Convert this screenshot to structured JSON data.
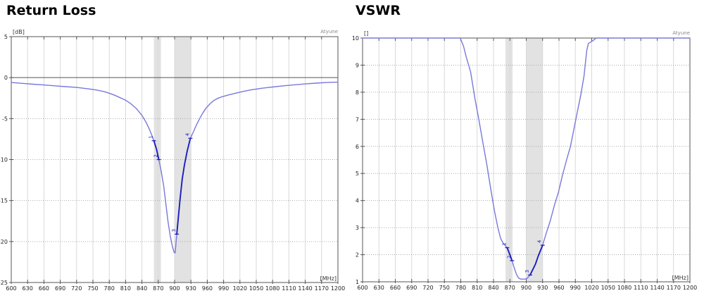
{
  "app": {
    "watermark": "Atyune"
  },
  "chart_data": [
    {
      "type": "line",
      "title": "Return Loss",
      "xlabel": "[MHz]",
      "ylabel": "[dB]",
      "watermark": "Atyune",
      "xlim": [
        600,
        1200
      ],
      "xtick_step": 30,
      "ylim": [
        -25,
        5
      ],
      "yticks": [
        5,
        0,
        -5,
        -10,
        -15,
        -20,
        -25
      ],
      "solid_line_at": 0,
      "grid": true,
      "legend": "none",
      "highlight_bands": [
        [
          862,
          875
        ],
        [
          900,
          930
        ]
      ],
      "line_color": "#7878dc",
      "bold_color": "#1e1ec0",
      "band_color": "#e2e2e2",
      "bold_ranges": [
        [
          862,
          871
        ],
        [
          904,
          929
        ]
      ],
      "markers": [
        {
          "label": "1",
          "x": 862,
          "y": -7.7
        },
        {
          "label": "2",
          "x": 871,
          "y": -10.0
        },
        {
          "label": "3",
          "x": 904,
          "y": -19.1
        },
        {
          "label": "4",
          "x": 929,
          "y": -7.4
        }
      ],
      "series": [
        {
          "name": "Return Loss",
          "points": [
            [
              600,
              -0.6
            ],
            [
              620,
              -0.7
            ],
            [
              640,
              -0.8
            ],
            [
              660,
              -0.9
            ],
            [
              680,
              -1.0
            ],
            [
              700,
              -1.1
            ],
            [
              720,
              -1.2
            ],
            [
              740,
              -1.35
            ],
            [
              755,
              -1.5
            ],
            [
              770,
              -1.7
            ],
            [
              780,
              -1.9
            ],
            [
              790,
              -2.15
            ],
            [
              800,
              -2.45
            ],
            [
              810,
              -2.75
            ],
            [
              820,
              -3.2
            ],
            [
              830,
              -3.8
            ],
            [
              840,
              -4.6
            ],
            [
              848,
              -5.5
            ],
            [
              855,
              -6.5
            ],
            [
              862,
              -7.7
            ],
            [
              867,
              -8.8
            ],
            [
              871,
              -10.0
            ],
            [
              875,
              -11.3
            ],
            [
              880,
              -13.2
            ],
            [
              884,
              -15.4
            ],
            [
              888,
              -17.6
            ],
            [
              892,
              -19.3
            ],
            [
              896,
              -20.6
            ],
            [
              899,
              -21.3
            ],
            [
              901,
              -21.4
            ],
            [
              903,
              -19.9
            ],
            [
              904,
              -19.1
            ],
            [
              907,
              -17.0
            ],
            [
              910,
              -14.9
            ],
            [
              914,
              -12.4
            ],
            [
              918,
              -10.7
            ],
            [
              923,
              -9.0
            ],
            [
              929,
              -7.4
            ],
            [
              934,
              -6.7
            ],
            [
              940,
              -5.8
            ],
            [
              946,
              -5.0
            ],
            [
              952,
              -4.3
            ],
            [
              958,
              -3.7
            ],
            [
              965,
              -3.2
            ],
            [
              972,
              -2.8
            ],
            [
              980,
              -2.5
            ],
            [
              989,
              -2.3
            ],
            [
              1000,
              -2.1
            ],
            [
              1012,
              -1.9
            ],
            [
              1025,
              -1.7
            ],
            [
              1040,
              -1.5
            ],
            [
              1060,
              -1.3
            ],
            [
              1080,
              -1.15
            ],
            [
              1100,
              -1.0
            ],
            [
              1120,
              -0.88
            ],
            [
              1140,
              -0.77
            ],
            [
              1160,
              -0.67
            ],
            [
              1180,
              -0.6
            ],
            [
              1200,
              -0.55
            ]
          ]
        }
      ]
    },
    {
      "type": "line",
      "title": "VSWR",
      "xlabel": "[MHz]",
      "ylabel": "[]",
      "watermark": "Atyune",
      "xlim": [
        600,
        1200
      ],
      "xtick_step": 30,
      "ylim": [
        1,
        10
      ],
      "yticks": [
        10,
        9,
        8,
        7,
        6,
        5,
        4,
        3,
        2,
        1
      ],
      "solid_line_at": null,
      "grid": true,
      "legend": "none",
      "highlight_bands": [
        [
          862,
          875
        ],
        [
          900,
          930
        ]
      ],
      "line_color": "#7878dc",
      "bold_color": "#1e1ec0",
      "band_color": "#e2e2e2",
      "bold_ranges": [
        [
          865,
          874
        ],
        [
          907,
          930
        ]
      ],
      "markers": [
        {
          "label": "1",
          "x": 865,
          "y": 2.26
        },
        {
          "label": "2",
          "x": 874,
          "y": 1.78
        },
        {
          "label": "3",
          "x": 907,
          "y": 1.25
        },
        {
          "label": "4",
          "x": 930,
          "y": 2.35
        }
      ],
      "series": [
        {
          "name": "VSWR",
          "points": [
            [
              600,
              10
            ],
            [
              779,
              10
            ],
            [
              785,
              9.7
            ],
            [
              790,
              9.3
            ],
            [
              798,
              8.75
            ],
            [
              806,
              7.75
            ],
            [
              813,
              7.0
            ],
            [
              820,
              6.2
            ],
            [
              828,
              5.3
            ],
            [
              836,
              4.3
            ],
            [
              842,
              3.6
            ],
            [
              848,
              3.0
            ],
            [
              853,
              2.6
            ],
            [
              858,
              2.42
            ],
            [
              865,
              2.26
            ],
            [
              870,
              2.0
            ],
            [
              874,
              1.78
            ],
            [
              878,
              1.52
            ],
            [
              882,
              1.28
            ],
            [
              886,
              1.14
            ],
            [
              890,
              1.1
            ],
            [
              898,
              1.1
            ],
            [
              902,
              1.13
            ],
            [
              907,
              1.25
            ],
            [
              912,
              1.45
            ],
            [
              917,
              1.66
            ],
            [
              922,
              1.95
            ],
            [
              930,
              2.35
            ],
            [
              936,
              2.75
            ],
            [
              944,
              3.25
            ],
            [
              952,
              3.85
            ],
            [
              959,
              4.3
            ],
            [
              966,
              4.9
            ],
            [
              974,
              5.5
            ],
            [
              981,
              6.0
            ],
            [
              988,
              6.7
            ],
            [
              994,
              7.3
            ],
            [
              1000,
              7.9
            ],
            [
              1006,
              8.6
            ],
            [
              1011,
              9.55
            ],
            [
              1014,
              9.8
            ],
            [
              1022,
              9.9
            ],
            [
              1028,
              10
            ],
            [
              1200,
              10
            ]
          ]
        }
      ]
    }
  ]
}
